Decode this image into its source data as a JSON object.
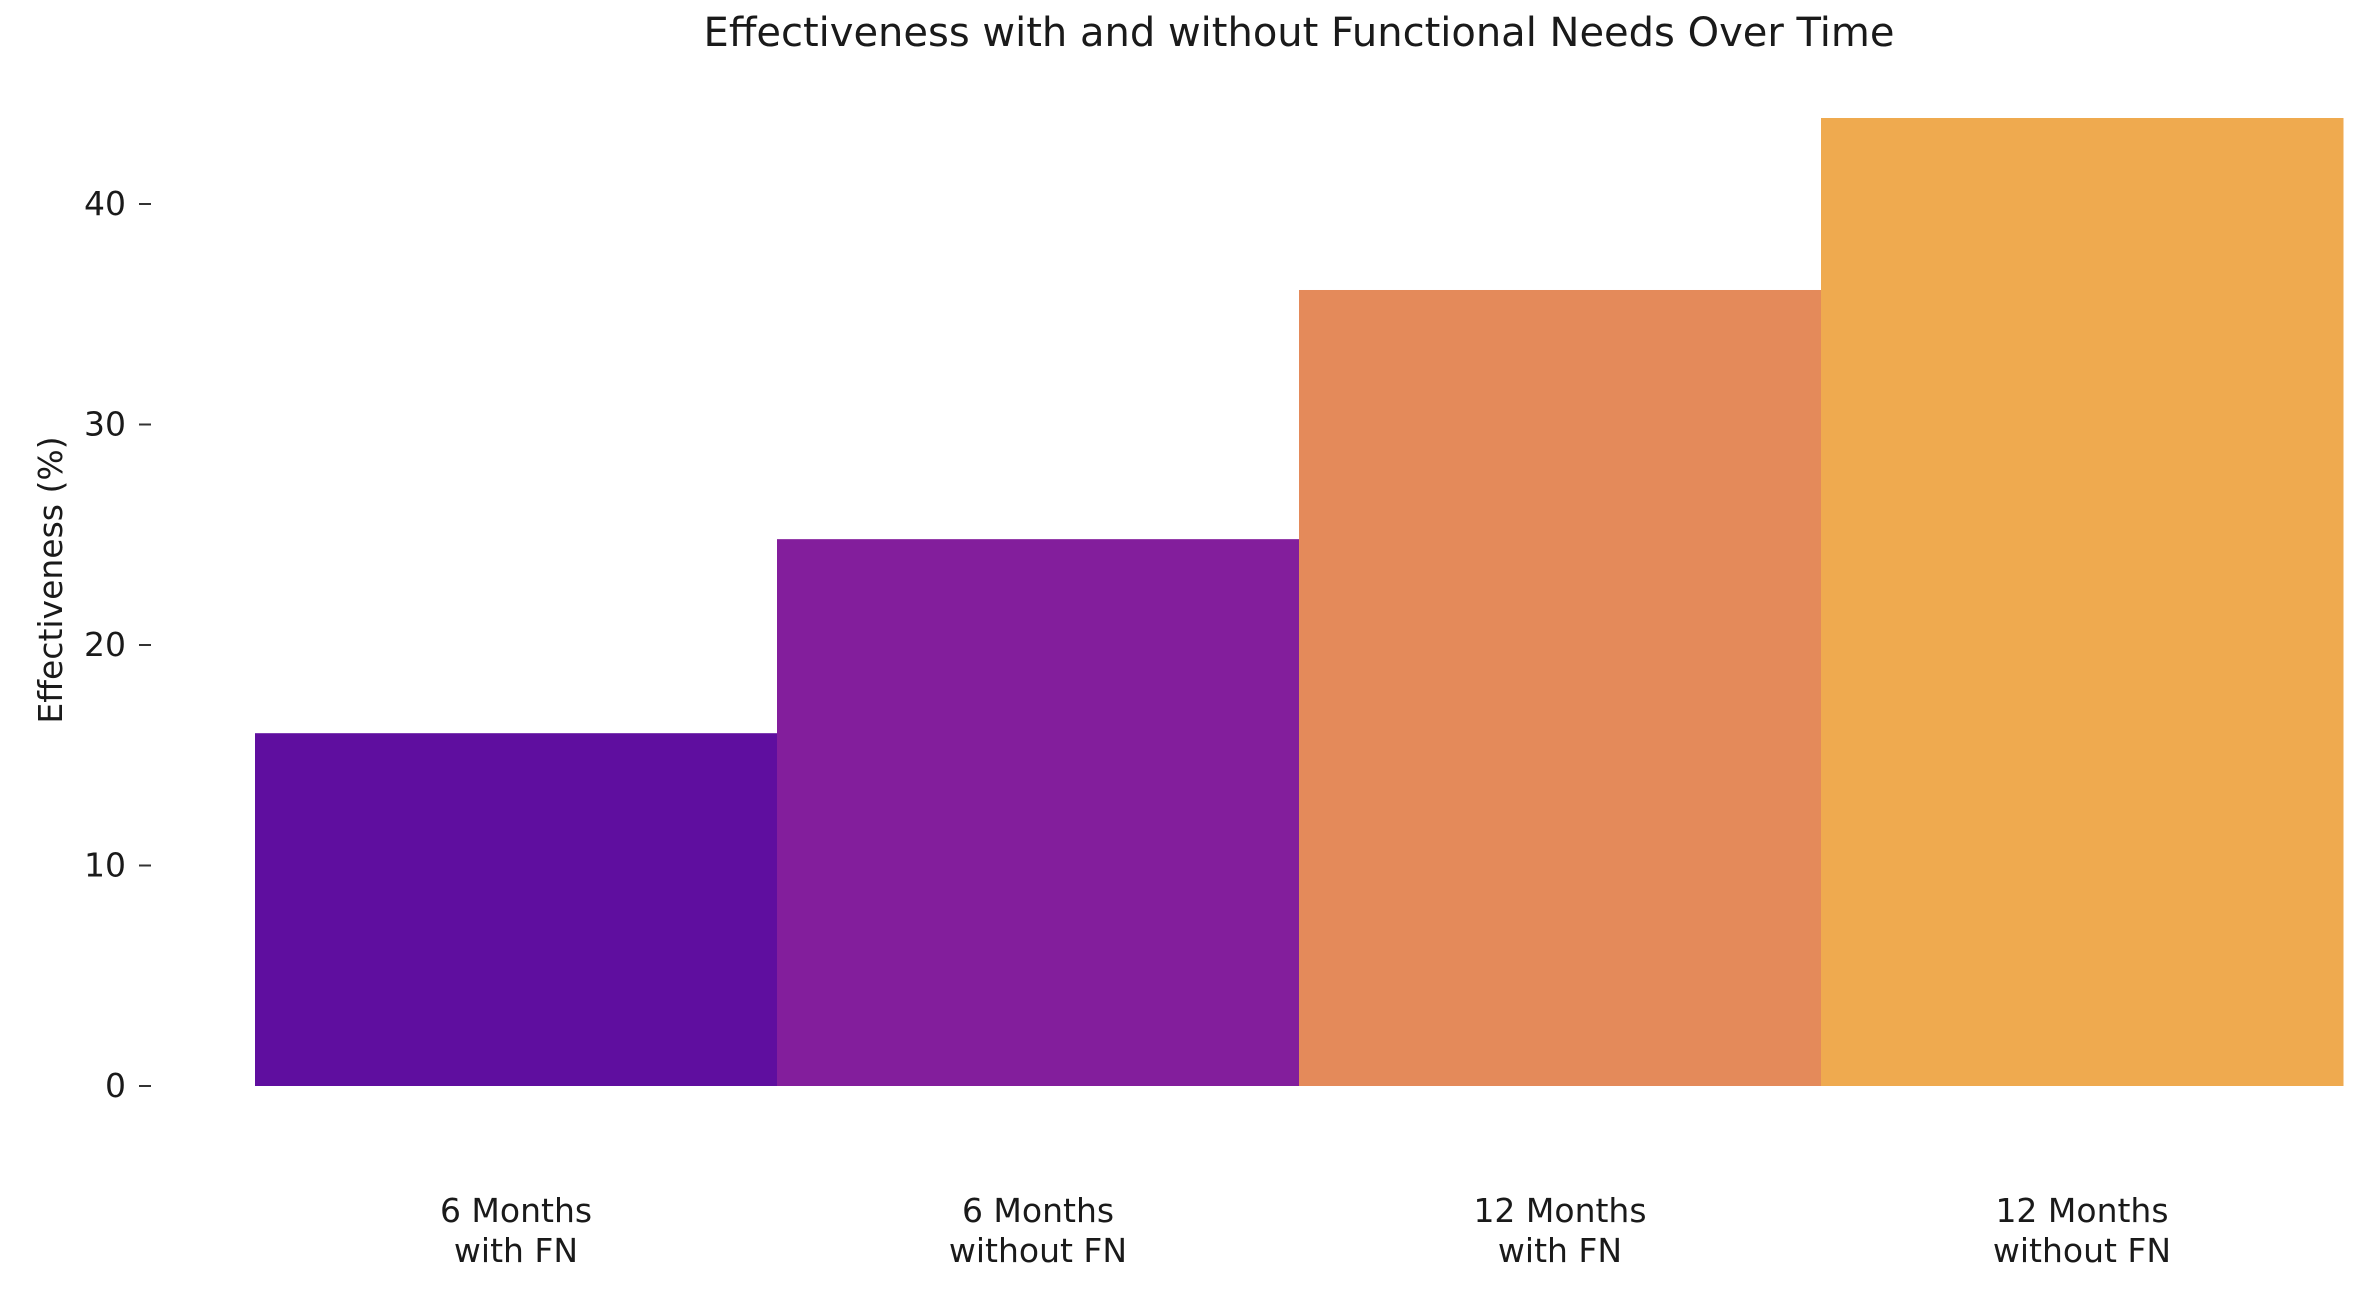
{
  "chart_data": {
    "type": "bar",
    "title": "Effectiveness with and without Functional Needs Over Time",
    "xlabel": "",
    "ylabel": "Effectiveness (%)",
    "categories": [
      [
        "6 Months",
        "with FN"
      ],
      [
        "6 Months",
        "without FN"
      ],
      [
        "12 Months",
        "with FN"
      ],
      [
        "12 Months",
        "without FN"
      ]
    ],
    "values": [
      16,
      24.8,
      36.1,
      43.9
    ],
    "colors": [
      "#5f0e9f",
      "#831e9c",
      "#e48a5a",
      "#efaa4f"
    ],
    "yticks": [
      0,
      10,
      20,
      30,
      40
    ],
    "ylim": [
      0,
      43.9
    ],
    "grid": false,
    "legend": "none"
  }
}
